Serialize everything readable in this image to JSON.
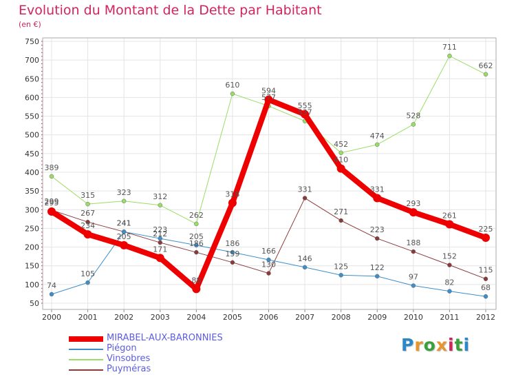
{
  "title": "Evolution du Montant de la Dette par Habitant",
  "subtitle": "(en €)",
  "logo": {
    "text": "Proxiti",
    "letters": [
      "P",
      "r",
      "o",
      "x",
      "i",
      "t",
      "i"
    ],
    "colors": [
      "#2b88c8",
      "#e8962c",
      "#3aa13a",
      "#e8962c",
      "#d2245c",
      "#3aa13a",
      "#2b88c8"
    ]
  },
  "chart_data": {
    "type": "line",
    "title": "Evolution du Montant de la Dette par Habitant",
    "subtitle": "(en €)",
    "x": [
      "2000",
      "2001",
      "2002",
      "2003",
      "2004",
      "2005",
      "2006",
      "2007",
      "2008",
      "2009",
      "2010",
      "2011",
      "2012"
    ],
    "y_ticks": [
      "50",
      "100",
      "150",
      "200",
      "250",
      "300",
      "350",
      "400",
      "450",
      "500",
      "550",
      "600",
      "650",
      "700",
      "750"
    ],
    "ylim": [
      50,
      750
    ],
    "grid": true,
    "legend_position": "bottom-left",
    "series": [
      {
        "name": "MIRABEL-AUX-BARONNIES",
        "color": "#ee0000",
        "width": 8,
        "values": [
          295,
          234,
          205,
          171,
          88,
          318,
          594,
          555,
          410,
          331,
          293,
          261,
          225
        ],
        "labels": [
          "295",
          "234",
          "205",
          "171",
          "88",
          "318",
          "594",
          "555",
          "410",
          "331",
          "293",
          "261",
          "225"
        ]
      },
      {
        "name": "Piégon",
        "color": "#3d8ec9",
        "width": 1,
        "values": [
          74,
          105,
          241,
          223,
          205,
          186,
          166,
          146,
          125,
          122,
          97,
          82,
          68
        ],
        "labels": [
          "74",
          "105",
          "241",
          "223",
          "205",
          "186",
          "166",
          "146",
          "125",
          "122",
          "97",
          "82",
          "68"
        ]
      },
      {
        "name": "Vinsobres",
        "color": "#99dd66",
        "width": 1,
        "values": [
          389,
          315,
          323,
          312,
          262,
          610,
          577,
          537,
          452,
          474,
          528,
          711,
          662
        ],
        "labels": [
          "389",
          "315",
          "323",
          "312",
          "262",
          "610",
          "577",
          "537",
          "452",
          "474",
          "528",
          "711",
          "662"
        ]
      },
      {
        "name": "Puyméras",
        "color": "#8b3a3a",
        "width": 1,
        "values": [
          299,
          267,
          241,
          212,
          186,
          159,
          130,
          331,
          271,
          223,
          188,
          152,
          115
        ],
        "labels": [
          "299",
          "267",
          "241",
          "212",
          "186",
          "159",
          "130",
          "331",
          "271",
          "223",
          "188",
          "152",
          "115"
        ]
      }
    ]
  }
}
